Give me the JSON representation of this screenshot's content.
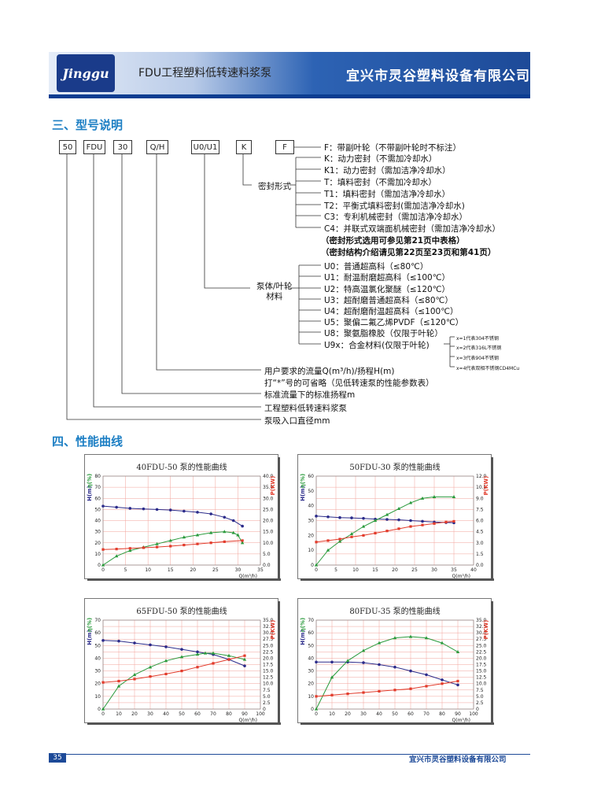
{
  "header": {
    "logo_text": "Jinggu",
    "title": "FDU工程塑料低转速料浆泵",
    "company": "宜兴市灵谷塑料设备有限公司"
  },
  "section3": {
    "title": "三、型号说明"
  },
  "model_boxes": [
    "50",
    "FDU",
    "30",
    "Q/H",
    "U0/U1",
    "K",
    "F"
  ],
  "F_desc": "F：带副叶轮（不带副叶轮时不标注）",
  "seal": {
    "label": "密封形式",
    "items": [
      "K：动力密封（不需加冷却水）",
      "K1：动力密封（需加洁净冷却水）",
      "T：填料密封（不需加冷却水）",
      "T1：填料密封（需加洁净冷却水）",
      "T2：平衡式填料密封(需加洁净冷却水)",
      "C3：专利机械密封（需加洁净冷却水）",
      "C4：并联式双端面机械密封（需加洁净冷却水）"
    ],
    "note1": "（密封形式选用可参见第21页中表格）",
    "note2": "（密封结构介绍请见第22页至23页和第41页）"
  },
  "material": {
    "label": "泵体/叶轮\n材料",
    "items": [
      "U0：普通超高科（≤80℃）",
      "U1：耐温耐磨超高科（≤100℃）",
      "U2：特高温氯化聚醚（≤120℃）",
      "U3：超耐磨普通超高科（≤80℃）",
      "U4：超耐磨耐温超高科（≤100℃）",
      "U5：聚偏二氟乙烯PVDF（≤120℃）",
      "U8：聚氨脂橡胶（仅限于叶轮）",
      "U9x：合金材料(仅限于叶轮)"
    ],
    "sub_items": [
      "x=1代表304不锈钢",
      "x=2代表316L不锈钢",
      "x=3代表904不锈钢",
      "x=4代表双相不锈钢CD4MCu"
    ]
  },
  "qh": {
    "line1": "用户要求的流量Q(m³/h)/扬程H(m)",
    "line2": "打“*”号的可省略（见低转速泵的性能参数表）"
  },
  "head_desc": "标准流量下的标准扬程m",
  "type_desc": "工程塑料低转速料浆泵",
  "inlet_desc": "泵吸入口直径mm",
  "section4": {
    "title": "四、性能曲线"
  },
  "colors": {
    "H": "#2b2b8a",
    "eta": "#2a9a3c",
    "P": "#e23b2b",
    "grid": "#f2a29a",
    "blue": "#1d4a98"
  },
  "chart_data": [
    {
      "type": "line",
      "title": "40FDU-50 泵的性能曲线",
      "xlabel": "Q(m³/h)",
      "ylabel_left": "H(m)",
      "ylabel_mid": "η(%)",
      "ylabel_right": "P(KW)",
      "xlim": [
        0,
        35
      ],
      "x_ticks": [
        "0",
        "5",
        "10",
        "15",
        "20",
        "25",
        "30",
        "35"
      ],
      "ylim_left": [
        0,
        80
      ],
      "y_ticks_left": [
        "0",
        "10",
        "20",
        "30",
        "40",
        "50",
        "60",
        "70",
        "80"
      ],
      "ylim_right": [
        0,
        40
      ],
      "y_ticks_right": [
        "0.0",
        "5.0",
        "10.0",
        "15.0",
        "20.0",
        "25.0",
        "30.0",
        "35.0",
        "40.0"
      ],
      "series": [
        {
          "axis": "left",
          "marker": "circle",
          "x": [
            0,
            3,
            6,
            9,
            12,
            15,
            18,
            21,
            24,
            27,
            29,
            31
          ],
          "y": [
            53,
            52,
            51,
            50.5,
            50,
            49.5,
            48.5,
            47.5,
            46,
            43,
            40,
            35
          ]
        },
        {
          "axis": "left",
          "marker": "triangle",
          "x": [
            0,
            3,
            6,
            9,
            12,
            15,
            18,
            21,
            24,
            27,
            29,
            30,
            31
          ],
          "y": [
            0,
            8,
            13,
            16,
            19,
            22,
            25,
            27,
            29,
            30,
            29,
            27,
            20
          ]
        },
        {
          "axis": "right",
          "marker": "square",
          "x": [
            0,
            3,
            6,
            9,
            12,
            15,
            18,
            21,
            24,
            27,
            31
          ],
          "y": [
            7,
            7.2,
            7.5,
            7.8,
            8.1,
            8.5,
            9,
            9.5,
            10,
            10.5,
            11
          ]
        }
      ]
    },
    {
      "type": "line",
      "title": "50FDU-30 泵的性能曲线",
      "xlabel": "Q(m³/h)",
      "ylabel_left": "H(m)",
      "ylabel_mid": "η(%)",
      "ylabel_right": "P(KW)",
      "xlim": [
        0,
        40
      ],
      "x_ticks": [
        "0",
        "5",
        "10",
        "15",
        "20",
        "25",
        "30",
        "35",
        "40"
      ],
      "ylim_left": [
        0,
        60
      ],
      "y_ticks_left": [
        "0",
        "10",
        "20",
        "30",
        "40",
        "50",
        "60"
      ],
      "ylim_right": [
        0,
        12
      ],
      "y_ticks_right": [
        "0.0",
        "1.5",
        "3.0",
        "4.5",
        "6.0",
        "7.5",
        "9.0",
        "10.5",
        "12.0"
      ],
      "series": [
        {
          "axis": "left",
          "marker": "circle",
          "x": [
            0,
            3,
            6,
            9,
            12,
            15,
            18,
            21,
            24,
            27,
            30,
            33,
            35
          ],
          "y": [
            33,
            32.5,
            32,
            31.8,
            31.5,
            31,
            30.8,
            30.5,
            30,
            29.5,
            29,
            28.7,
            28.5
          ]
        },
        {
          "axis": "left",
          "marker": "triangle",
          "x": [
            0,
            3,
            6,
            9,
            12,
            15,
            18,
            21,
            24,
            27,
            30,
            35
          ],
          "y": [
            0,
            10,
            16,
            21,
            26,
            30,
            34,
            38,
            42,
            45,
            46,
            46
          ]
        },
        {
          "axis": "right",
          "marker": "square",
          "x": [
            0,
            3,
            6,
            9,
            12,
            15,
            18,
            21,
            24,
            27,
            30,
            33,
            35
          ],
          "y": [
            3.1,
            3.3,
            3.5,
            3.8,
            4.0,
            4.3,
            4.6,
            4.9,
            5.2,
            5.4,
            5.6,
            5.8,
            5.9
          ]
        }
      ]
    },
    {
      "type": "line",
      "title": "65FDU-50 泵的性能曲线",
      "xlabel": "Q(m³/h)",
      "ylabel_left": "H(m)",
      "ylabel_mid": "η(%)",
      "ylabel_right": "P(KW)",
      "xlim": [
        0,
        100
      ],
      "x_ticks": [
        "0",
        "10",
        "20",
        "30",
        "40",
        "50",
        "60",
        "70",
        "80",
        "90",
        "100"
      ],
      "ylim_left": [
        0,
        70
      ],
      "y_ticks_left": [
        "0",
        "10",
        "20",
        "30",
        "40",
        "50",
        "60",
        "70"
      ],
      "ylim_right": [
        0,
        35
      ],
      "y_ticks_right": [
        "0",
        "2.5",
        "5.0",
        "7.5",
        "10.0",
        "12.5",
        "15.0",
        "17.5",
        "20.0",
        "22.5",
        "25.0",
        "27.5",
        "30.0",
        "32.5",
        "35.0"
      ],
      "series": [
        {
          "axis": "left",
          "marker": "circle",
          "x": [
            0,
            10,
            20,
            30,
            40,
            50,
            60,
            70,
            80,
            90
          ],
          "y": [
            54,
            53.5,
            52,
            50.5,
            49,
            47,
            45,
            43,
            39,
            34
          ]
        },
        {
          "axis": "left",
          "marker": "triangle",
          "x": [
            0,
            10,
            20,
            30,
            40,
            50,
            60,
            65,
            70,
            80,
            90
          ],
          "y": [
            0,
            18,
            27,
            33,
            38,
            41,
            43,
            44,
            44,
            42,
            39
          ]
        },
        {
          "axis": "right",
          "marker": "square",
          "x": [
            0,
            10,
            20,
            30,
            40,
            50,
            60,
            70,
            80,
            90
          ],
          "y": [
            10.5,
            11,
            11.8,
            12.8,
            13.8,
            15,
            16.5,
            18,
            19.5,
            21
          ]
        }
      ]
    },
    {
      "type": "line",
      "title": "80FDU-35 泵的性能曲线",
      "xlabel": "Q(m³/h)",
      "ylabel_left": "H(m)",
      "ylabel_mid": "η(%)",
      "ylabel_right": "P(KW)",
      "xlim": [
        0,
        100
      ],
      "x_ticks": [
        "0",
        "10",
        "20",
        "30",
        "40",
        "50",
        "60",
        "70",
        "80",
        "90",
        "100"
      ],
      "ylim_left": [
        0,
        70
      ],
      "y_ticks_left": [
        "0",
        "10",
        "20",
        "30",
        "40",
        "50",
        "60",
        "70"
      ],
      "ylim_right": [
        0,
        35
      ],
      "y_ticks_right": [
        "0",
        "2.5",
        "5.0",
        "7.5",
        "10.0",
        "12.5",
        "15.0",
        "17.5",
        "20.0",
        "22.5",
        "25.0",
        "27.5",
        "30.0",
        "32.5",
        "35.0"
      ],
      "series": [
        {
          "axis": "left",
          "marker": "circle",
          "x": [
            0,
            10,
            20,
            30,
            40,
            50,
            60,
            70,
            80,
            90
          ],
          "y": [
            37,
            37,
            37,
            36.5,
            35,
            33,
            30,
            27,
            23,
            19
          ]
        },
        {
          "axis": "left",
          "marker": "triangle",
          "x": [
            0,
            10,
            20,
            30,
            40,
            50,
            60,
            70,
            80,
            90
          ],
          "y": [
            0,
            25,
            38,
            46,
            52,
            56,
            57,
            56,
            52,
            45
          ]
        },
        {
          "axis": "right",
          "marker": "square",
          "x": [
            0,
            10,
            20,
            30,
            40,
            50,
            60,
            70,
            80,
            90
          ],
          "y": [
            5,
            5.5,
            6,
            6.5,
            7,
            7.5,
            8,
            9,
            10,
            11
          ]
        }
      ]
    }
  ],
  "footer": {
    "page": "35",
    "company": "宜兴市灵谷塑料设备有限公司"
  }
}
